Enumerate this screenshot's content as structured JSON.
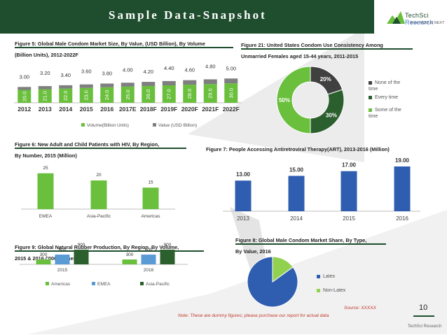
{
  "header": {
    "title": "Sample Data-Snapshot"
  },
  "logo": {
    "name_part1": "TechSci",
    "name_part2": "Research",
    "tagline": "from NOW to NEXT"
  },
  "colors": {
    "brand": "#1f4e2f",
    "bright_green": "#6abf3c",
    "dark_green": "#2c5f2e",
    "gray": "#7f7f7f",
    "blue": "#2f5eb0",
    "light_blue": "#5b9bd5",
    "light_green": "#92d050",
    "accent_red": "#c0392b"
  },
  "figures": {
    "fig5": {
      "title_l1": "Figure 5: Global Male Condom Market Size, By Value, (USD Billion), By Volume",
      "title_l2": "(Billion Units), 2012-2022F"
    },
    "fig21": {
      "title_l1": "Figure 21: United States Condom Use Consistency Among",
      "title_l2": "Unmarried Females aged 15-44 years, 2011-2015"
    },
    "fig6": {
      "title_l1": "Figure 6: New Adult and Child Patients with HIV, By Region,",
      "title_l2": "By Number, 2015 (Million)"
    },
    "fig7": {
      "title_l1": "Figure 7: People Accessing Antiretroviral Therapy(ART), 2013-2016 (Million)"
    },
    "fig9": {
      "title_l1": "Figure 9: Global Natural Rubber Production, By Region, By Volume,",
      "title_l2": "2015 & 2016 ('000 Tonnes)"
    },
    "fig8": {
      "title_l1": "Figure 8: Global Male Condom Market Share, By Type,",
      "title_l2": "By Value, 2016"
    }
  },
  "chart_data": [
    {
      "id": "fig5",
      "type": "bar",
      "categories": [
        "2012",
        "2013",
        "2014",
        "2015",
        "2016",
        "2017E",
        "2018F",
        "2019F",
        "2020F",
        "2021F",
        "2022F"
      ],
      "series": [
        {
          "name": "Volume(Billion Units)",
          "values": [
            20.0,
            21.0,
            22.0,
            23.0,
            24.0,
            25.0,
            26.0,
            27.0,
            28.0,
            29.0,
            30.0
          ]
        },
        {
          "name": "Value (USD Billion)",
          "values": [
            3.0,
            3.2,
            3.4,
            3.6,
            3.8,
            4.0,
            4.2,
            4.4,
            4.6,
            4.8,
            5.0
          ]
        }
      ],
      "value_labels": [
        "3.00",
        "3.20",
        "3.40",
        "3.60",
        "3.80",
        "4.00",
        "4.20",
        "4.40",
        "4.60",
        "4.80",
        "5.00"
      ],
      "volume_labels": [
        "20.0",
        "21.0",
        "22.0",
        "23.0",
        "24.0",
        "25.0",
        "26.0",
        "27.0",
        "28.0",
        "29.0",
        "30.0"
      ],
      "legend": "bottom"
    },
    {
      "id": "fig21",
      "type": "pie",
      "donut": true,
      "categories": [
        "None of the time",
        "Every time",
        "Some of the time"
      ],
      "values": [
        20,
        30,
        50
      ],
      "labels": [
        "20%",
        "30%",
        "50%"
      ],
      "colors": [
        "#404040",
        "#2c5f2e",
        "#6abf3c"
      ],
      "legend": "right"
    },
    {
      "id": "fig6",
      "type": "bar",
      "categories": [
        "EMEA",
        "Asia-Pacific",
        "Americas"
      ],
      "values": [
        25,
        20,
        15
      ],
      "labels": [
        "25",
        "20",
        "15"
      ]
    },
    {
      "id": "fig7",
      "type": "bar",
      "categories": [
        "2013",
        "2014",
        "2015",
        "2016"
      ],
      "values": [
        13.0,
        15.0,
        17.0,
        19.0
      ],
      "labels": [
        "13.00",
        "15.00",
        "17.00",
        "19.00"
      ]
    },
    {
      "id": "fig9",
      "type": "bar",
      "categories": [
        "2015",
        "2016"
      ],
      "series": [
        {
          "name": "Americas",
          "values": [
            300,
            300
          ]
        },
        {
          "name": "EMEA",
          "values": [
            600,
            600
          ]
        },
        {
          "name": "Asia-Pacific",
          "values": [
            900,
            900
          ]
        }
      ],
      "labels": [
        "300",
        "600",
        "900"
      ],
      "legend": "bottom"
    },
    {
      "id": "fig8",
      "type": "pie",
      "categories": [
        "Latex",
        "Non-Latex"
      ],
      "values": [
        85,
        15
      ],
      "colors": [
        "#2f5eb0",
        "#92d050"
      ],
      "legend": "right"
    }
  ],
  "footer": {
    "source": "Source: XXXXX",
    "note": "Note: These are dummy figures; please purchase our report for actual data",
    "page": "10",
    "brand": "TechSci Research"
  }
}
